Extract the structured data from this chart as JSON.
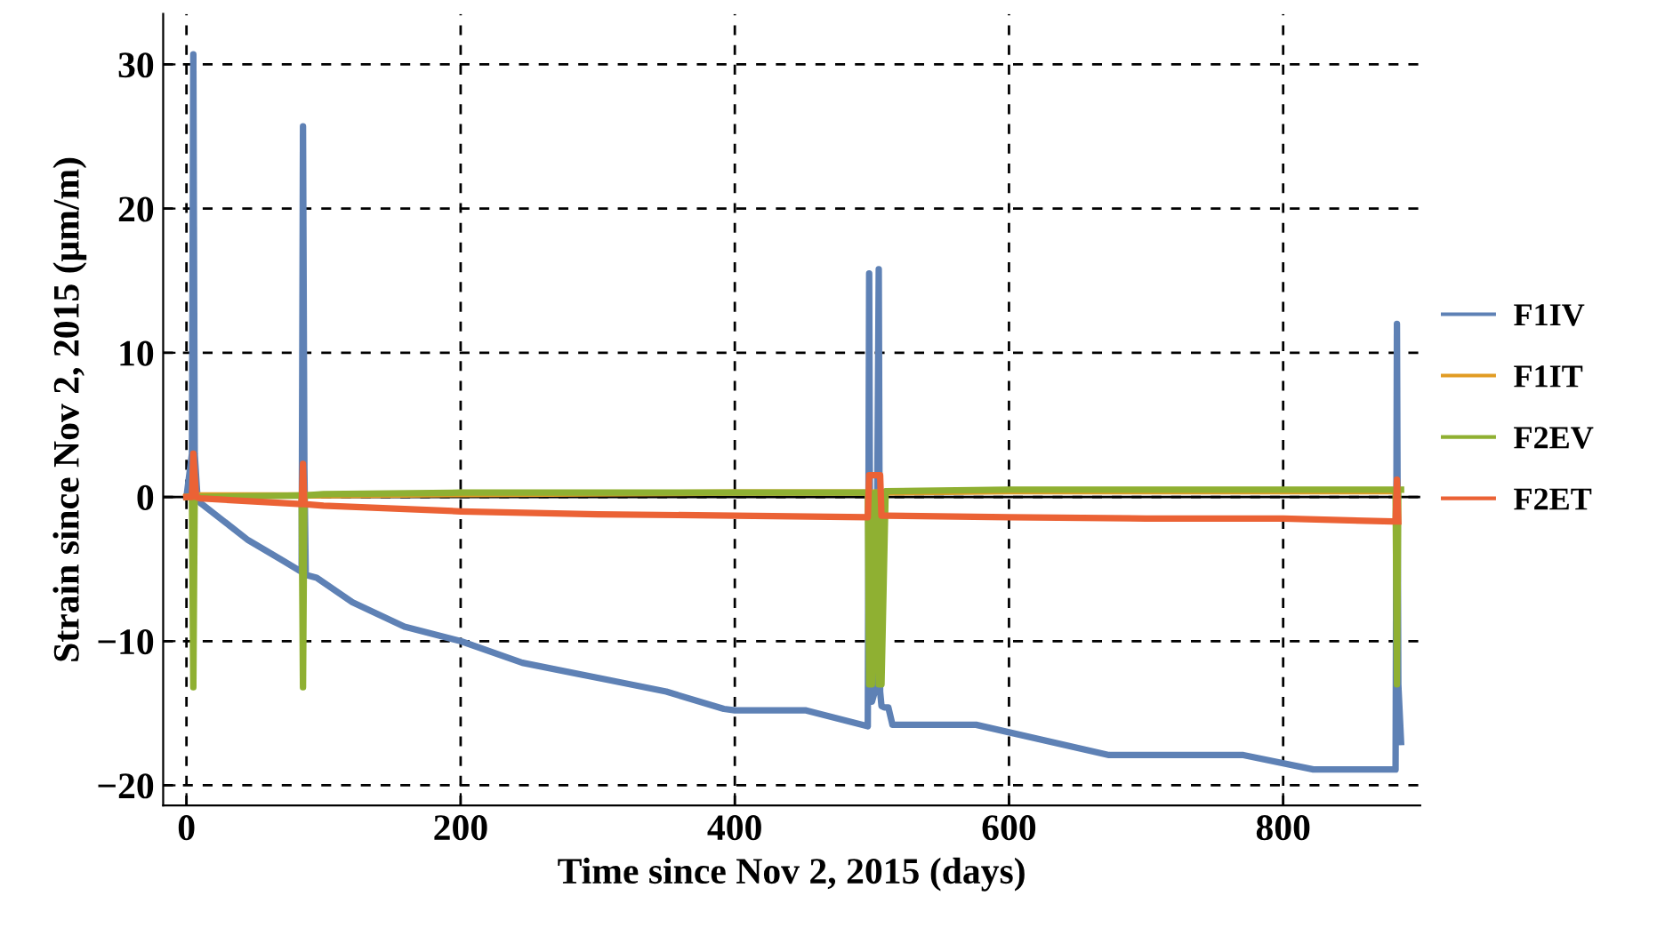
{
  "chart_data": {
    "type": "line",
    "xlabel": "Time since Nov 2, 2015 (days)",
    "ylabel": "Strain since Nov 2, 2015 (μm/m)",
    "xlim": [
      -17,
      900
    ],
    "ylim": [
      -21.4,
      33.5
    ],
    "xticks": [
      0,
      200,
      400,
      600,
      800
    ],
    "yticks": [
      -20,
      -10,
      0,
      10,
      20,
      30
    ],
    "grid": true,
    "legend": "right",
    "line_style": "solid",
    "marker": "none",
    "ref_lines": [
      {
        "axis": "y",
        "value": 0,
        "color": "#000000",
        "line_style": "solid"
      }
    ],
    "series": [
      {
        "name": "F1IV",
        "color": "#5e81b5",
        "x": [
          0,
          4,
          5,
          6,
          8,
          10,
          45,
          70,
          84,
          85,
          86,
          87,
          95,
          121,
          159,
          200,
          245,
          308,
          350,
          392,
          400,
          452,
          497,
          498,
          499,
          500,
          503,
          505,
          506,
          507,
          509,
          512,
          515,
          520,
          576,
          673,
          771,
          822,
          879,
          882,
          883,
          884,
          886
        ],
        "values": [
          0,
          3,
          30.7,
          3,
          0,
          -0.4,
          -3.0,
          -4.4,
          -5.2,
          25.7,
          2,
          -5.4,
          -5.6,
          -7.3,
          -9.0,
          -10.0,
          -11.5,
          -12.7,
          -13.5,
          -14.7,
          -14.8,
          -14.8,
          -15.9,
          15.5,
          -13,
          -14.2,
          -13.2,
          15.8,
          -13.5,
          -14.5,
          -14.6,
          -14.6,
          -15.8,
          -15.8,
          -15.8,
          -17.9,
          -17.9,
          -18.9,
          -18.9,
          -18.9,
          12.0,
          -13,
          -17.0
        ]
      },
      {
        "name": "F1IT",
        "color": "#e19c24",
        "x": [
          0,
          5,
          85,
          200,
          400,
          500,
          600,
          800,
          883
        ],
        "values": [
          0,
          0.1,
          0.1,
          0.2,
          0.3,
          0.3,
          0.4,
          0.4,
          0.4
        ]
      },
      {
        "name": "F2EV",
        "color": "#8fb032",
        "x": [
          0,
          4,
          5,
          6,
          84,
          85,
          86,
          100,
          200,
          400,
          497,
          498,
          499,
          500,
          503,
          505,
          506,
          507,
          510,
          600,
          800,
          880,
          882,
          883,
          884,
          886
        ],
        "values": [
          0,
          0,
          -13.2,
          0,
          0.1,
          -13.2,
          0.1,
          0.2,
          0.3,
          0.3,
          0.3,
          -13,
          0.3,
          -13,
          0.3,
          -13,
          0.3,
          -13,
          0.4,
          0.5,
          0.5,
          0.5,
          0.5,
          -13,
          0.5,
          0.5
        ]
      },
      {
        "name": "F2ET",
        "color": "#eb6235",
        "x": [
          0,
          4,
          5,
          7,
          10,
          84,
          85,
          86,
          100,
          200,
          300,
          400,
          497,
          498,
          500,
          506,
          507,
          510,
          600,
          700,
          800,
          880,
          882,
          883,
          884
        ],
        "values": [
          0,
          0,
          3.0,
          0,
          -0.1,
          -0.5,
          2.3,
          -0.5,
          -0.6,
          -1.0,
          -1.2,
          -1.3,
          -1.4,
          1.5,
          1.5,
          1.5,
          -1.3,
          -1.3,
          -1.4,
          -1.5,
          -1.5,
          -1.7,
          -1.7,
          1.2,
          -1.7
        ]
      }
    ]
  }
}
